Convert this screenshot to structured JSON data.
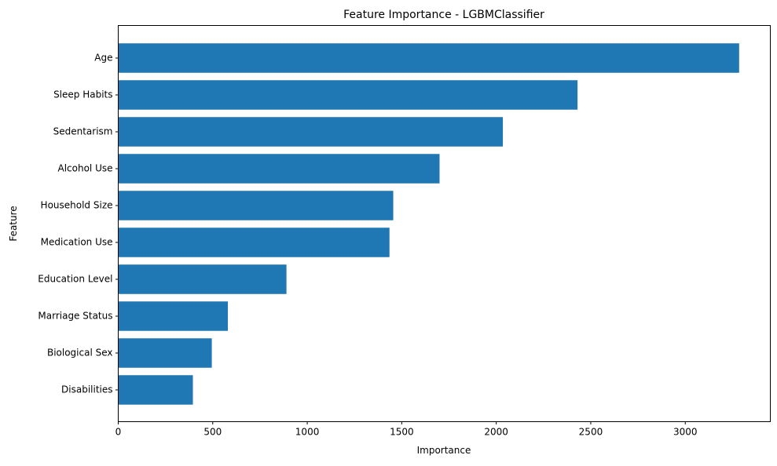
{
  "chart_data": {
    "type": "bar",
    "orientation": "horizontal",
    "title": "Feature Importance - LGBMClassifier",
    "xlabel": "Importance",
    "ylabel": "Feature",
    "categories": [
      "Age",
      "Sleep Habits",
      "Sedentarism",
      "Alcohol Use",
      "Household Size",
      "Medication Use",
      "Education Level",
      "Marriage Status",
      "Biological Sex",
      "Disabilities"
    ],
    "values": [
      3285,
      2430,
      2035,
      1700,
      1455,
      1435,
      890,
      580,
      495,
      395
    ],
    "xlim": [
      0,
      3450
    ],
    "xticks": [
      0,
      500,
      1000,
      1500,
      2000,
      2500,
      3000
    ],
    "xtick_labels": [
      "0",
      "500",
      "1000",
      "1500",
      "2000",
      "2500",
      "3000"
    ],
    "bar_color": "#1f77b4",
    "grid": false,
    "legend": false
  }
}
